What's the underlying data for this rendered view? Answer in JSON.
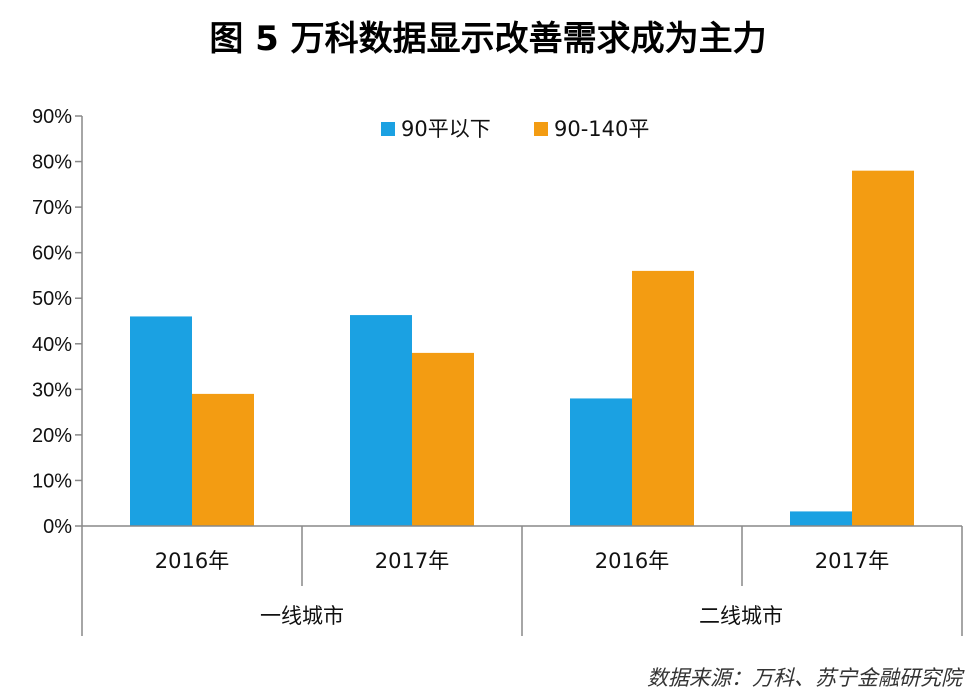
{
  "chart_data": {
    "type": "bar",
    "title": "图 5  万科数据显示改善需求成为主力",
    "categories": [
      "2016年",
      "2017年",
      "2016年",
      "2017年"
    ],
    "groups": [
      {
        "label": "一线城市",
        "categories": [
          "2016年",
          "2017年"
        ]
      },
      {
        "label": "二线城市",
        "categories": [
          "2016年",
          "2017年"
        ]
      }
    ],
    "series": [
      {
        "name": "90平以下",
        "color": "#1ba1e2",
        "values": [
          46,
          46.3,
          28,
          3.2
        ]
      },
      {
        "name": "90-140平",
        "color": "#f39c12",
        "values": [
          29,
          38,
          56,
          78
        ]
      }
    ],
    "ylim": [
      0,
      90
    ],
    "yticks": [
      "0%",
      "10%",
      "20%",
      "30%",
      "40%",
      "50%",
      "60%",
      "70%",
      "80%",
      "90%"
    ],
    "legend_position": "top-center",
    "grid": false,
    "source": "数据来源：万科、苏宁金融研究院"
  }
}
